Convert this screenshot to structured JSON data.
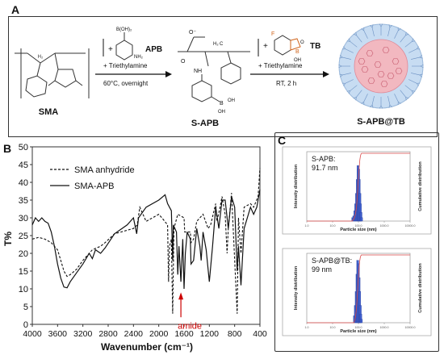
{
  "panel_a": {
    "letter": "A",
    "compounds": {
      "sma": "SMA",
      "apb_reagent": "APB",
      "apb_group": "B(OH)₂",
      "apb_amine": "NH₂",
      "s_apb": "S-APB",
      "tb_reagent": "TB",
      "tb_f": "F",
      "tb_o": "O",
      "tb_b": "B",
      "tb_oh": "OH",
      "s_apb_tb": "S-APB@TB"
    },
    "step1": {
      "plus": "+",
      "reagent": "+ Triethylamine",
      "conditions": "60°C, overnight"
    },
    "step2": {
      "plus": "+",
      "reagent": "+ Triethylamine",
      "conditions": "RT, 2 h"
    },
    "structure_labels": {
      "o_minus": "O⁻",
      "h2": "H₂",
      "c": "C",
      "nh": "NH",
      "o": "O",
      "oh": "OH",
      "b": "B"
    },
    "colors": {
      "outer_shell": "#c7dcf2",
      "core": "#f2b8c0",
      "fluorine": "#d0631a",
      "boron": "#d0631a"
    }
  },
  "panel_b": {
    "letter": "B",
    "chart_data": {
      "type": "line",
      "xlabel": "Wavenumber (cm⁻¹)",
      "ylabel": "T%",
      "xlim": [
        4000,
        400
      ],
      "ylim": [
        0,
        50
      ],
      "xticks": [
        4000,
        3600,
        3200,
        2800,
        2400,
        2000,
        1600,
        1200,
        800,
        400
      ],
      "yticks": [
        0,
        5,
        10,
        15,
        20,
        25,
        30,
        35,
        40,
        45,
        50
      ],
      "legend_position": "top-left",
      "annotation": {
        "text": "amide",
        "x": 1650,
        "color": "#cc0000"
      },
      "series": [
        {
          "name": "SMA anhydride",
          "style": "dashed",
          "points": [
            [
              4000,
              24
            ],
            [
              3900,
              24.5
            ],
            [
              3800,
              24
            ],
            [
              3700,
              23
            ],
            [
              3600,
              21
            ],
            [
              3550,
              18
            ],
            [
              3500,
              15
            ],
            [
              3450,
              13.5
            ],
            [
              3400,
              14
            ],
            [
              3300,
              15.5
            ],
            [
              3200,
              18
            ],
            [
              3100,
              20
            ],
            [
              3050,
              21
            ],
            [
              2920,
              22
            ],
            [
              2850,
              23
            ],
            [
              2700,
              25.5
            ],
            [
              2600,
              26
            ],
            [
              2400,
              27
            ],
            [
              2340,
              28
            ],
            [
              2300,
              33
            ],
            [
              2200,
              29
            ],
            [
              2000,
              31
            ],
            [
              1950,
              30
            ],
            [
              1860,
              28
            ],
            [
              1845,
              12
            ],
            [
              1830,
              22
            ],
            [
              1800,
              24
            ],
            [
              1780,
              3
            ],
            [
              1760,
              27
            ],
            [
              1700,
              31
            ],
            [
              1600,
              30
            ],
            [
              1590,
              26
            ],
            [
              1500,
              26
            ],
            [
              1490,
              23
            ],
            [
              1450,
              24
            ],
            [
              1400,
              29
            ],
            [
              1300,
              31
            ],
            [
              1220,
              27
            ],
            [
              1180,
              28
            ],
            [
              1100,
              34
            ],
            [
              1080,
              29
            ],
            [
              1030,
              33
            ],
            [
              1000,
              36
            ],
            [
              950,
              31
            ],
            [
              920,
              20
            ],
            [
              900,
              27
            ],
            [
              850,
              37
            ],
            [
              760,
              3
            ],
            [
              740,
              30
            ],
            [
              700,
              20
            ],
            [
              650,
              33
            ],
            [
              550,
              34
            ],
            [
              500,
              33
            ],
            [
              430,
              36
            ],
            [
              400,
              44
            ]
          ]
        },
        {
          "name": "SMA-APB",
          "style": "solid",
          "points": [
            [
              4000,
              28
            ],
            [
              3950,
              30
            ],
            [
              3900,
              29
            ],
            [
              3850,
              30
            ],
            [
              3800,
              29
            ],
            [
              3750,
              28.5
            ],
            [
              3700,
              26
            ],
            [
              3650,
              22
            ],
            [
              3600,
              17
            ],
            [
              3550,
              13
            ],
            [
              3500,
              10.5
            ],
            [
              3450,
              10.3
            ],
            [
              3400,
              12
            ],
            [
              3300,
              14.5
            ],
            [
              3200,
              17
            ],
            [
              3100,
              20
            ],
            [
              3050,
              18.5
            ],
            [
              3000,
              21
            ],
            [
              2920,
              20
            ],
            [
              2850,
              21.5
            ],
            [
              2700,
              25.5
            ],
            [
              2500,
              28
            ],
            [
              2400,
              30
            ],
            [
              2350,
              25.5
            ],
            [
              2320,
              30
            ],
            [
              2200,
              33
            ],
            [
              2000,
              35
            ],
            [
              1900,
              36.5
            ],
            [
              1860,
              34
            ],
            [
              1800,
              32
            ],
            [
              1780,
              18
            ],
            [
              1770,
              28
            ],
            [
              1720,
              26
            ],
            [
              1700,
              14
            ],
            [
              1680,
              22
            ],
            [
              1650,
              12
            ],
            [
              1620,
              24
            ],
            [
              1600,
              10
            ],
            [
              1580,
              20
            ],
            [
              1550,
              26
            ],
            [
              1500,
              24
            ],
            [
              1490,
              17
            ],
            [
              1450,
              18
            ],
            [
              1400,
              27
            ],
            [
              1350,
              22
            ],
            [
              1330,
              18
            ],
            [
              1300,
              26
            ],
            [
              1250,
              21
            ],
            [
              1200,
              12
            ],
            [
              1150,
              22
            ],
            [
              1100,
              33
            ],
            [
              1050,
              27
            ],
            [
              1000,
              35
            ],
            [
              950,
              35
            ],
            [
              900,
              27
            ],
            [
              850,
              36
            ],
            [
              800,
              33
            ],
            [
              760,
              15
            ],
            [
              740,
              22
            ],
            [
              700,
              11
            ],
            [
              650,
              27
            ],
            [
              550,
              33
            ],
            [
              500,
              31
            ],
            [
              450,
              33
            ],
            [
              400,
              38
            ]
          ]
        }
      ]
    }
  },
  "panel_c": {
    "letter": "C",
    "plots": [
      {
        "label": "S-APB:",
        "value": "91.7 nm",
        "ylabel_left": "Intensity distribution",
        "ylabel_right": "Cumulative distribution",
        "xlabel": "Particle size (nm)",
        "xticks": [
          "1.0",
          "10.0",
          "100.0",
          "1000.0",
          "10000.0"
        ],
        "chart_data": {
          "type": "bar",
          "x_scale": "log",
          "xlim": [
            1,
            10000
          ],
          "bins": [
            60,
            66,
            72,
            78,
            84,
            90,
            96,
            102,
            108,
            114,
            120,
            126,
            132
          ],
          "values": [
            1,
            1.5,
            3,
            5,
            8,
            12,
            16,
            15,
            12,
            8,
            5,
            2.5,
            1
          ]
        }
      },
      {
        "label": "S-APB@TB:",
        "value": "99 nm",
        "ylabel_left": "Intensity distribution",
        "ylabel_right": "Cumulative distribution",
        "xlabel": "Particle size (nm)",
        "xticks": [
          "1.0",
          "10.0",
          "100.0",
          "1000.0",
          "10000.0"
        ],
        "chart_data": {
          "type": "bar",
          "x_scale": "log",
          "xlim": [
            1,
            10000
          ],
          "bins": [
            70,
            76,
            82,
            88,
            94,
            100,
            106,
            112,
            118,
            124,
            130
          ],
          "values": [
            2,
            5,
            9,
            14,
            18,
            17,
            13,
            9,
            5,
            2.5,
            1
          ]
        }
      }
    ]
  }
}
